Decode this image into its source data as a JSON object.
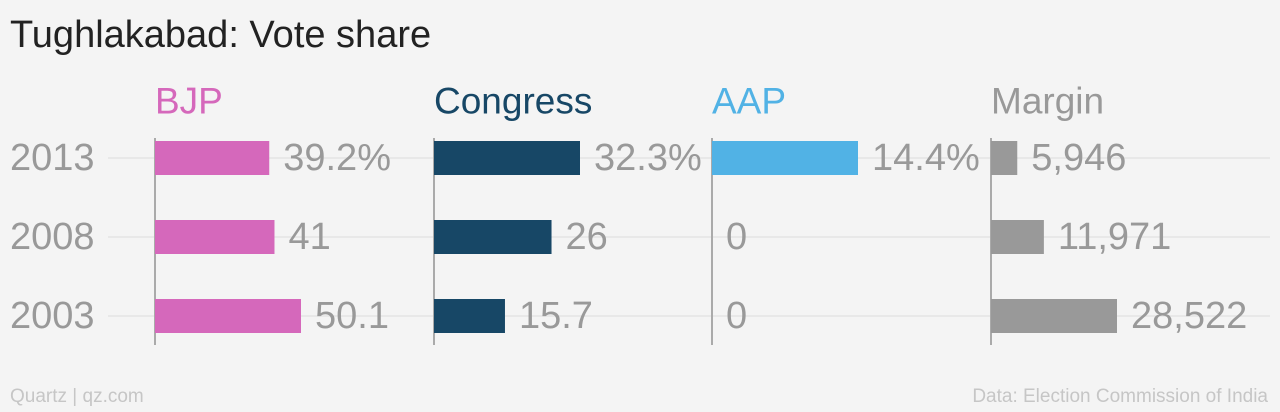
{
  "title": "Tughlakabad: Vote share",
  "footer": {
    "credit": "Quartz | qz.com",
    "source": "Data: Election Commission of India"
  },
  "chart_data": {
    "type": "bar",
    "orientation": "horizontal",
    "title": "Tughlakabad: Vote share",
    "categories": [
      "2013",
      "2008",
      "2003"
    ],
    "grid": true,
    "series": [
      {
        "name": "BJP",
        "color": "#d568bb",
        "values": [
          39.2,
          41,
          50.1
        ],
        "labels": [
          "39.2%",
          "41",
          "50.1"
        ]
      },
      {
        "name": "Congress",
        "color": "#174766",
        "values": [
          32.3,
          26,
          15.7
        ],
        "labels": [
          "32.3%",
          "26",
          "15.7"
        ]
      },
      {
        "name": "AAP",
        "color": "#51b2e5",
        "values": [
          14.4,
          0,
          0
        ],
        "labels": [
          "14.4%",
          "0",
          "0"
        ]
      },
      {
        "name": "Margin",
        "color": "#999999",
        "values": [
          5946,
          11971,
          28522
        ],
        "labels": [
          "5,946",
          "11,971",
          "28,522"
        ]
      }
    ],
    "category_label_color": "#999999",
    "value_label_color": "#999999",
    "grid_color": "#e4e4e4",
    "axis_color": "#aaaaaa"
  }
}
